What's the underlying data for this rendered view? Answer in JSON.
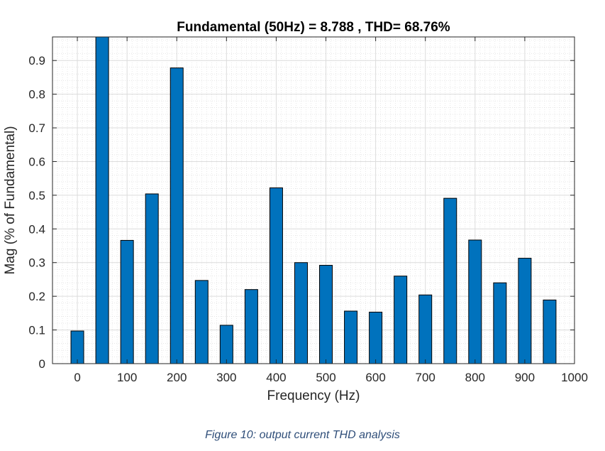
{
  "chart_data": {
    "type": "bar",
    "title": "Fundamental (50Hz) = 8.788 , THD= 68.76%",
    "xlabel": "Frequency (Hz)",
    "ylabel": "Mag (% of Fundamental)",
    "x": [
      0,
      50,
      100,
      150,
      200,
      250,
      300,
      350,
      400,
      450,
      500,
      550,
      600,
      650,
      700,
      750,
      800,
      850,
      900,
      950
    ],
    "values": [
      0.097,
      1.0,
      0.366,
      0.504,
      0.878,
      0.247,
      0.114,
      0.22,
      0.522,
      0.3,
      0.292,
      0.156,
      0.153,
      0.26,
      0.204,
      0.491,
      0.367,
      0.24,
      0.313,
      0.189
    ],
    "xlim": [
      -50,
      1000
    ],
    "ylim": [
      0,
      0.97
    ],
    "xticks": [
      0,
      100,
      200,
      300,
      400,
      500,
      600,
      700,
      800,
      900,
      1000
    ],
    "yticks": [
      0,
      0.1,
      0.2,
      0.3,
      0.4,
      0.5,
      0.6,
      0.7,
      0.8,
      0.9
    ],
    "grid": true,
    "minor_grid": true,
    "bar_color": "#0072BD"
  },
  "caption": {
    "text": "Figure 10: output current THD analysis",
    "color": "#2F4E79"
  }
}
